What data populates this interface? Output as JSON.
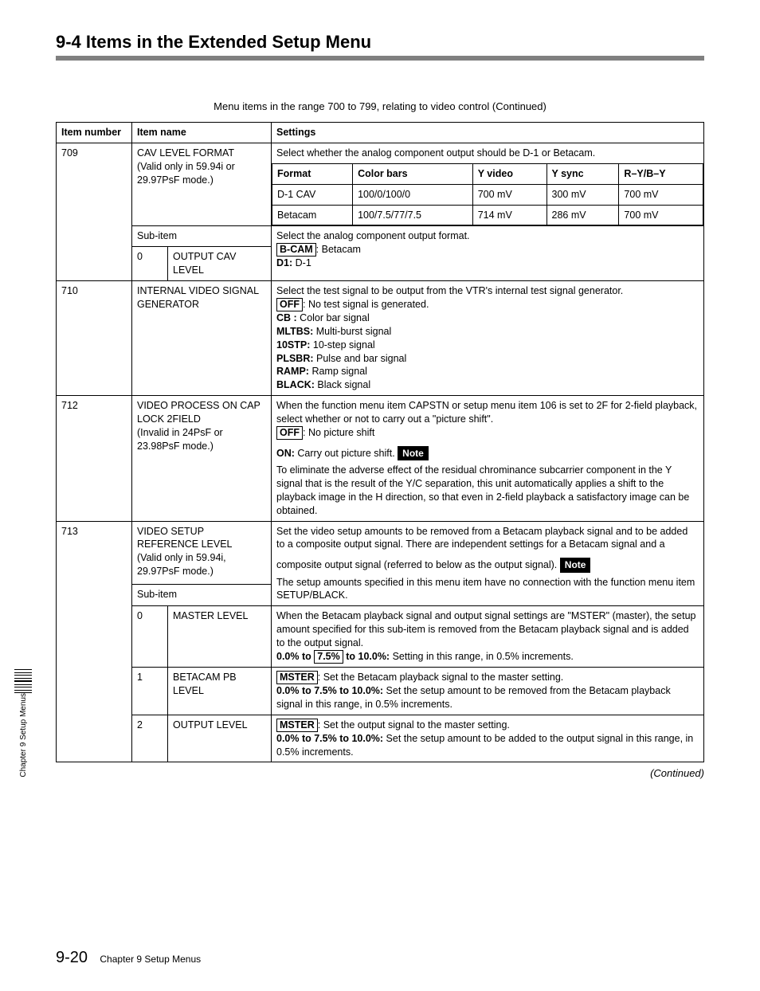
{
  "section_title": "9-4  Items in the Extended Setup Menu",
  "table_caption": "Menu items in the range 700 to 799, relating to video control (Continued)",
  "headers": {
    "itemnum": "Item number",
    "itemname": "Item name",
    "settings": "Settings",
    "subitem": "Sub-item"
  },
  "row709": {
    "num": "709",
    "name_l1": "CAV LEVEL FORMAT",
    "name_l2": "(Valid only in 59.94i or 29.97PsF mode.)",
    "settings_intro": "Select whether the analog component output should be D-1 or Betacam.",
    "inner_headers": [
      "Format",
      "Color bars",
      "Y video",
      "Y sync",
      "R–Y/B–Y"
    ],
    "inner_r1": [
      "D-1 CAV",
      "100/0/100/0",
      "700 mV",
      "300 mV",
      "700 mV"
    ],
    "inner_r2": [
      "Betacam",
      "100/7.5/77/7.5",
      "714 mV",
      "286 mV",
      "700 mV"
    ],
    "sub0_num": "0",
    "sub0_name": "OUTPUT CAV LEVEL",
    "sub0_text1": "Select the analog component output format.",
    "sub0_bcam_k": "B-CAM",
    "sub0_bcam_v": ": Betacam",
    "sub0_d1_k": "D1:",
    "sub0_d1_v": " D-1"
  },
  "row710": {
    "num": "710",
    "name_l1": "INTERNAL VIDEO SIGNAL GENERATOR",
    "line1": "Select the test signal to be output from the VTR's internal test signal generator.",
    "off_k": "OFF",
    "off_v": ": No test signal is generated.",
    "cb_k": "CB :",
    "cb_v": " Color bar signal",
    "mltbs_k": "MLTBS:",
    "mltbs_v": " Multi-burst signal",
    "stp_k": "10STP:",
    "stp_v": " 10-step signal",
    "plsbr_k": "PLSBR:",
    "plsbr_v": " Pulse and bar signal",
    "ramp_k": "RAMP:",
    "ramp_v": " Ramp signal",
    "black_k": "BLACK:",
    "black_v": " Black signal"
  },
  "row712": {
    "num": "712",
    "name_l1": "VIDEO PROCESS ON CAP LOCK 2FIELD",
    "name_l2": "(Invalid in 24PsF or 23.98PsF mode.)",
    "line1": "When the function menu item CAPSTN or setup menu item 106 is set to 2F for 2-field playback, select whether or not to carry out a \"picture shift\".",
    "off_k": "OFF",
    "off_v": ": No picture shift",
    "on_k": "ON:",
    "on_v": " Carry out picture shift.",
    "note_label": "Note",
    "note_text": "To eliminate the adverse effect of the residual chrominance subcarrier component in the Y signal that is the result of the Y/C separation, this unit automatically applies a shift to the playback image in the H direction, so that even in 2-field playback a satisfactory image can be obtained."
  },
  "row713": {
    "num": "713",
    "name_l1": "VIDEO SETUP REFERENCE LEVEL",
    "name_l2": "(Valid only in 59.94i, 29.97PsF mode.)",
    "para1": "Set the video setup amounts to be removed from a Betacam playback signal and to be added to a composite output signal. There are independent settings for a Betacam signal and a composite output signal (referred to below as the output signal).",
    "note_label": "Note",
    "para2": "The setup amounts specified in this menu item have no connection with the function menu item SETUP/BLACK.",
    "sub0_num": "0",
    "sub0_name": "MASTER LEVEL",
    "sub0_t1": "When the Betacam playback signal and output signal settings are \"MSTER\" (master), the setup amount specified for this sub-item is removed from the Betacam playback signal and is added to the output signal.",
    "sub0_range_k": "0.0% to ",
    "sub0_range_box": "7.5%",
    "sub0_range_tail": " to 10.0%:",
    "sub0_range_v": " Setting in this range, in 0.5% increments.",
    "sub1_num": "1",
    "sub1_name": "BETACAM PB LEVEL",
    "sub1_box": "MSTER",
    "sub1_t1": ": Set the Betacam playback signal to the master setting.",
    "sub1_range_k": "0.0% to 7.5% to 10.0%:",
    "sub1_range_v": " Set the setup amount to be removed from the Betacam playback signal in this range, in 0.5% increments.",
    "sub2_num": "2",
    "sub2_name": "OUTPUT LEVEL",
    "sub2_box": "MSTER",
    "sub2_t1": ": Set the output signal to the master setting.",
    "sub2_range_k": "0.0%  to 7.5% to 10.0%:",
    "sub2_range_v": " Set the setup amount to be added to the output signal in this range, in 0.5% increments."
  },
  "continued": "(Continued)",
  "footer_pagenum": "9-20",
  "footer_text": "Chapter 9   Setup Menus",
  "side_label": "Chapter 9   Setup Menus"
}
